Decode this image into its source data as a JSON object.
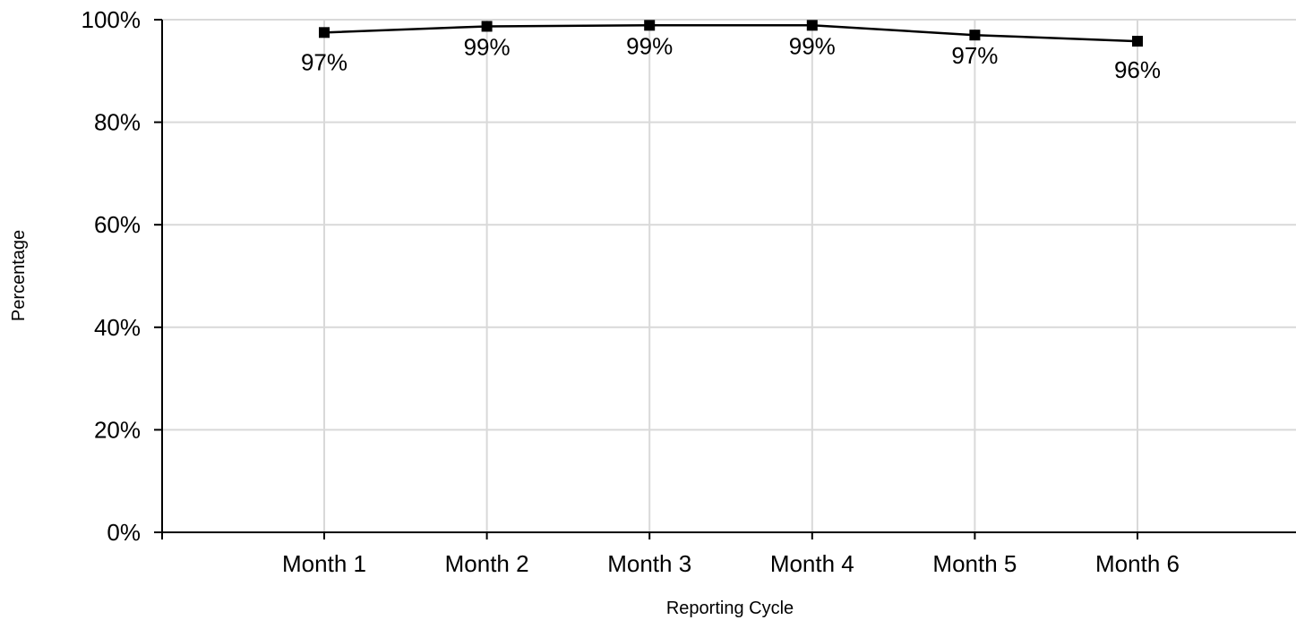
{
  "chart_data": {
    "type": "line",
    "title": "",
    "xlabel": "Reporting Cycle",
    "ylabel": "Percentage",
    "categories": [
      "Month 1",
      "Month 2",
      "Month 3",
      "Month 4",
      "Month 5",
      "Month 6"
    ],
    "series": [
      {
        "values": [
          97.5,
          98.7,
          98.9,
          98.9,
          97.0,
          95.8
        ],
        "labels": [
          "97%",
          "99%",
          "99%",
          "99%",
          "97%",
          "96%"
        ]
      }
    ],
    "ylim": [
      0,
      100
    ],
    "yticks": [
      0,
      20,
      40,
      60,
      80,
      100
    ],
    "ytick_labels": [
      "0%",
      "20%",
      "40%",
      "60%",
      "80%",
      "100%"
    ],
    "grid": true,
    "legend": "none",
    "colors": {
      "line": "#000000",
      "marker": "#000000",
      "grid": "#d9d9d9",
      "axis": "#000000"
    }
  }
}
